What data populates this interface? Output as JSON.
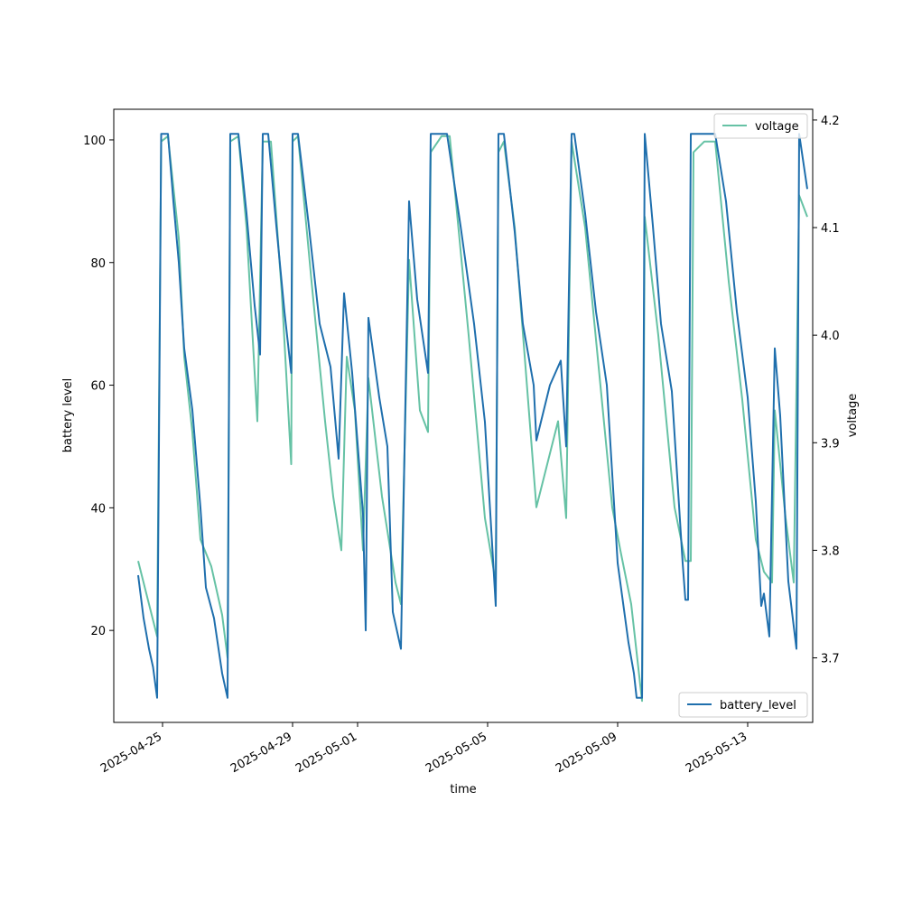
{
  "chart_data": {
    "type": "line",
    "xlabel": "time",
    "ylabel_left": "battery level",
    "ylabel_right": "voltage",
    "x_range": [
      "2025-04-23T12:00",
      "2025-05-15T00:00"
    ],
    "ylim_left": [
      5,
      105
    ],
    "ylim_right": [
      3.64,
      4.21
    ],
    "x_ticks": [
      "2025-04-25",
      "2025-04-29",
      "2025-05-01",
      "2025-05-05",
      "2025-05-09",
      "2025-05-13"
    ],
    "y_ticks_left": [
      20,
      40,
      60,
      80,
      100
    ],
    "y_ticks_right": [
      3.7,
      3.8,
      3.9,
      4.0,
      4.1,
      4.2
    ],
    "grid": false,
    "series": [
      {
        "name": "battery_level",
        "axis": "left",
        "color": "#1f6fad",
        "legend_position": "lower-right",
        "points": [
          [
            "2025-04-24T06:00",
            29
          ],
          [
            "2025-04-24T10:00",
            22
          ],
          [
            "2025-04-24T14:00",
            17
          ],
          [
            "2025-04-24T17:00",
            14
          ],
          [
            "2025-04-24T20:00",
            9
          ],
          [
            "2025-04-24T23:00",
            101
          ],
          [
            "2025-04-25T04:00",
            101
          ],
          [
            "2025-04-25T08:00",
            90
          ],
          [
            "2025-04-25T12:00",
            80
          ],
          [
            "2025-04-25T16:00",
            66
          ],
          [
            "2025-04-25T22:00",
            56
          ],
          [
            "2025-04-26T04:00",
            40
          ],
          [
            "2025-04-26T08:00",
            27
          ],
          [
            "2025-04-26T14:00",
            22
          ],
          [
            "2025-04-26T20:00",
            13
          ],
          [
            "2025-04-27T00:00",
            9
          ],
          [
            "2025-04-27T02:00",
            101
          ],
          [
            "2025-04-27T08:00",
            101
          ],
          [
            "2025-04-27T14:00",
            88
          ],
          [
            "2025-04-27T20:00",
            73
          ],
          [
            "2025-04-28T00:00",
            65
          ],
          [
            "2025-04-28T02:00",
            101
          ],
          [
            "2025-04-28T06:00",
            101
          ],
          [
            "2025-04-28T12:00",
            86
          ],
          [
            "2025-04-28T18:00",
            72
          ],
          [
            "2025-04-28T23:00",
            62
          ],
          [
            "2025-04-29T00:00",
            101
          ],
          [
            "2025-04-29T04:00",
            101
          ],
          [
            "2025-04-29T12:00",
            86
          ],
          [
            "2025-04-29T20:00",
            70
          ],
          [
            "2025-04-30T04:00",
            63
          ],
          [
            "2025-04-30T10:00",
            48
          ],
          [
            "2025-04-30T14:00",
            75
          ],
          [
            "2025-04-30T20:00",
            62
          ],
          [
            "2025-05-01T04:00",
            39
          ],
          [
            "2025-05-01T06:00",
            20
          ],
          [
            "2025-05-01T08:00",
            71
          ],
          [
            "2025-05-01T16:00",
            58
          ],
          [
            "2025-05-01T22:00",
            50
          ],
          [
            "2025-05-02T02:00",
            23
          ],
          [
            "2025-05-02T08:00",
            17
          ],
          [
            "2025-05-02T14:00",
            90
          ],
          [
            "2025-05-02T20:00",
            74
          ],
          [
            "2025-05-03T04:00",
            62
          ],
          [
            "2025-05-03T06:00",
            101
          ],
          [
            "2025-05-03T18:00",
            101
          ],
          [
            "2025-05-04T04:00",
            86
          ],
          [
            "2025-05-04T14:00",
            70
          ],
          [
            "2025-05-04T22:00",
            54
          ],
          [
            "2025-05-05T06:00",
            24
          ],
          [
            "2025-05-05T08:00",
            101
          ],
          [
            "2025-05-05T12:00",
            101
          ],
          [
            "2025-05-05T20:00",
            85
          ],
          [
            "2025-05-06T02:00",
            70
          ],
          [
            "2025-05-06T10:00",
            60
          ],
          [
            "2025-05-06T12:00",
            51
          ],
          [
            "2025-05-06T22:00",
            60
          ],
          [
            "2025-05-07T06:00",
            64
          ],
          [
            "2025-05-07T10:00",
            50
          ],
          [
            "2025-05-07T14:00",
            101
          ],
          [
            "2025-05-07T16:00",
            101
          ],
          [
            "2025-05-08T00:00",
            88
          ],
          [
            "2025-05-08T08:00",
            72
          ],
          [
            "2025-05-08T16:00",
            60
          ],
          [
            "2025-05-09T00:00",
            31
          ],
          [
            "2025-05-09T08:00",
            18
          ],
          [
            "2025-05-09T12:00",
            13
          ],
          [
            "2025-05-09T14:00",
            9
          ],
          [
            "2025-05-09T18:00",
            9
          ],
          [
            "2025-05-09T20:00",
            101
          ],
          [
            "2025-05-10T02:00",
            86
          ],
          [
            "2025-05-10T08:00",
            70
          ],
          [
            "2025-05-10T16:00",
            59
          ],
          [
            "2025-05-11T00:00",
            31
          ],
          [
            "2025-05-11T02:00",
            25
          ],
          [
            "2025-05-11T04:00",
            25
          ],
          [
            "2025-05-11T06:00",
            101
          ],
          [
            "2025-05-12T00:00",
            101
          ],
          [
            "2025-05-12T08:00",
            90
          ],
          [
            "2025-05-12T16:00",
            72
          ],
          [
            "2025-05-13T00:00",
            58
          ],
          [
            "2025-05-13T06:00",
            41
          ],
          [
            "2025-05-13T10:00",
            24
          ],
          [
            "2025-05-13T12:00",
            26
          ],
          [
            "2025-05-13T16:00",
            19
          ],
          [
            "2025-05-13T20:00",
            66
          ],
          [
            "2025-05-14T00:00",
            55
          ],
          [
            "2025-05-14T06:00",
            28
          ],
          [
            "2025-05-14T12:00",
            17
          ],
          [
            "2025-05-14T14:00",
            101
          ],
          [
            "2025-05-14T20:00",
            92
          ]
        ]
      },
      {
        "name": "voltage",
        "axis": "right",
        "color": "#66c2a5",
        "legend_position": "upper-right",
        "points": [
          [
            "2025-04-24T06:00",
            3.79
          ],
          [
            "2025-04-24T12:00",
            3.76
          ],
          [
            "2025-04-24T20:00",
            3.72
          ],
          [
            "2025-04-24T23:00",
            4.18
          ],
          [
            "2025-04-25T04:00",
            4.185
          ],
          [
            "2025-04-25T12:00",
            4.09
          ],
          [
            "2025-04-25T16:00",
            3.98
          ],
          [
            "2025-04-25T22:00",
            3.91
          ],
          [
            "2025-04-26T04:00",
            3.81
          ],
          [
            "2025-04-26T12:00",
            3.785
          ],
          [
            "2025-04-26T20:00",
            3.74
          ],
          [
            "2025-04-27T00:00",
            3.7
          ],
          [
            "2025-04-27T02:00",
            4.18
          ],
          [
            "2025-04-27T08:00",
            4.185
          ],
          [
            "2025-04-27T14:00",
            4.1
          ],
          [
            "2025-04-27T22:00",
            3.92
          ],
          [
            "2025-04-28T02:00",
            4.18
          ],
          [
            "2025-04-28T08:00",
            4.18
          ],
          [
            "2025-04-28T16:00",
            4.04
          ],
          [
            "2025-04-28T23:00",
            3.88
          ],
          [
            "2025-04-29T00:00",
            4.18
          ],
          [
            "2025-04-29T04:00",
            4.185
          ],
          [
            "2025-04-29T14:00",
            4.05
          ],
          [
            "2025-04-30T00:00",
            3.92
          ],
          [
            "2025-04-30T06:00",
            3.85
          ],
          [
            "2025-04-30T12:00",
            3.8
          ],
          [
            "2025-04-30T16:00",
            3.98
          ],
          [
            "2025-04-30T22:00",
            3.93
          ],
          [
            "2025-05-01T04:00",
            3.8
          ],
          [
            "2025-05-01T08:00",
            3.96
          ],
          [
            "2025-05-01T18:00",
            3.85
          ],
          [
            "2025-05-02T04:00",
            3.77
          ],
          [
            "2025-05-02T08:00",
            3.75
          ],
          [
            "2025-05-02T14:00",
            4.07
          ],
          [
            "2025-05-02T22:00",
            3.93
          ],
          [
            "2025-05-03T04:00",
            3.91
          ],
          [
            "2025-05-03T06:00",
            4.17
          ],
          [
            "2025-05-03T14:00",
            4.185
          ],
          [
            "2025-05-03T20:00",
            4.185
          ],
          [
            "2025-05-04T10:00",
            4.0
          ],
          [
            "2025-05-04T22:00",
            3.83
          ],
          [
            "2025-05-05T06:00",
            3.77
          ],
          [
            "2025-05-05T08:00",
            4.17
          ],
          [
            "2025-05-05T12:00",
            4.18
          ],
          [
            "2025-05-05T20:00",
            4.1
          ],
          [
            "2025-05-06T04:00",
            3.97
          ],
          [
            "2025-05-06T12:00",
            3.84
          ],
          [
            "2025-05-06T20:00",
            3.88
          ],
          [
            "2025-05-07T04:00",
            3.92
          ],
          [
            "2025-05-07T10:00",
            3.83
          ],
          [
            "2025-05-07T14:00",
            4.18
          ],
          [
            "2025-05-08T00:00",
            4.1
          ],
          [
            "2025-05-08T10:00",
            3.97
          ],
          [
            "2025-05-08T20:00",
            3.84
          ],
          [
            "2025-05-09T02:00",
            3.8
          ],
          [
            "2025-05-09T10:00",
            3.75
          ],
          [
            "2025-05-09T18:00",
            3.66
          ],
          [
            "2025-05-09T20:00",
            4.11
          ],
          [
            "2025-05-10T06:00",
            4.0
          ],
          [
            "2025-05-10T18:00",
            3.84
          ],
          [
            "2025-05-11T02:00",
            3.79
          ],
          [
            "2025-05-11T06:00",
            3.79
          ],
          [
            "2025-05-11T08:00",
            4.17
          ],
          [
            "2025-05-11T16:00",
            4.18
          ],
          [
            "2025-05-12T00:00",
            4.18
          ],
          [
            "2025-05-12T10:00",
            4.05
          ],
          [
            "2025-05-12T20:00",
            3.94
          ],
          [
            "2025-05-13T06:00",
            3.81
          ],
          [
            "2025-05-13T12:00",
            3.78
          ],
          [
            "2025-05-13T18:00",
            3.77
          ],
          [
            "2025-05-13T20:00",
            3.93
          ],
          [
            "2025-05-14T04:00",
            3.83
          ],
          [
            "2025-05-14T10:00",
            3.77
          ],
          [
            "2025-05-14T14:00",
            4.13
          ],
          [
            "2025-05-14T20:00",
            4.11
          ]
        ]
      }
    ]
  }
}
